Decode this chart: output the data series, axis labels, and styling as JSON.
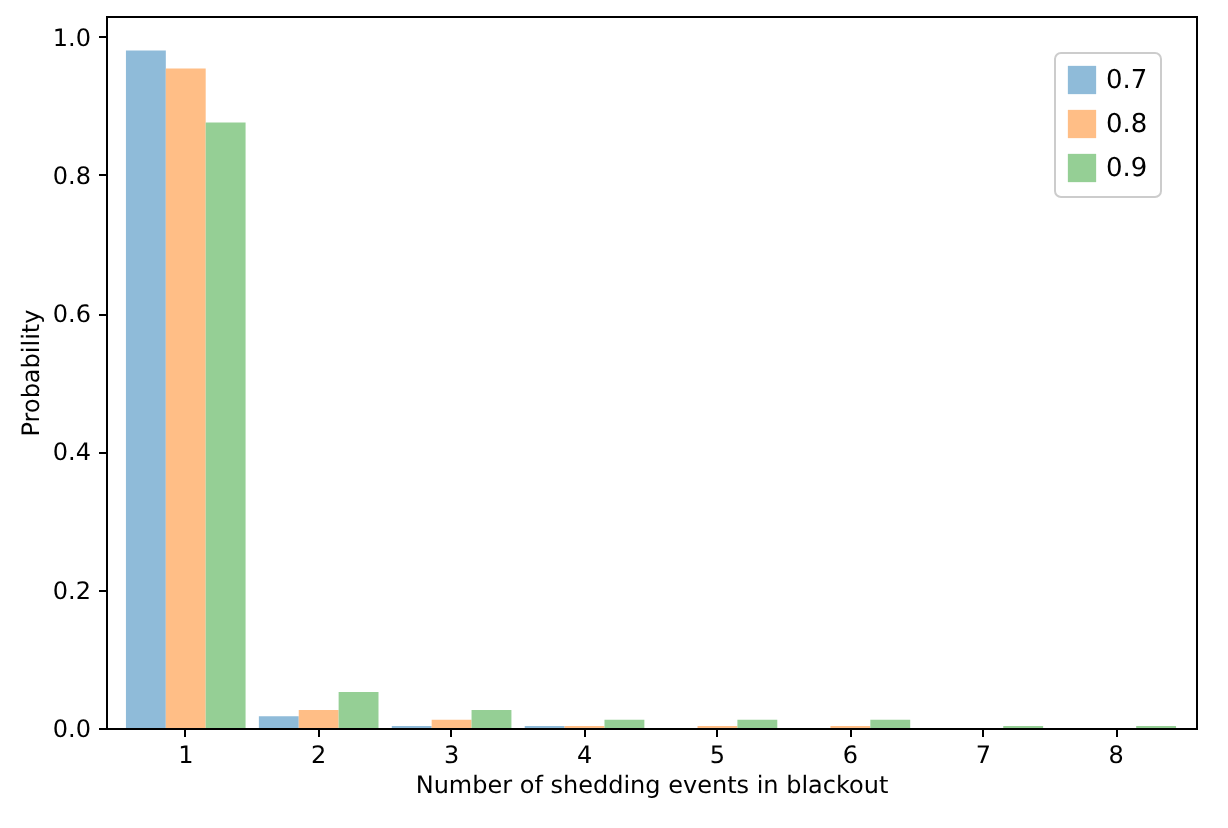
{
  "chart_data": {
    "type": "bar",
    "xlabel": "Number of shedding events in blackout",
    "ylabel": "Probability",
    "categories": [
      "1",
      "2",
      "3",
      "4",
      "5",
      "6",
      "7",
      "8"
    ],
    "series": [
      {
        "name": "0.7",
        "color": "#8fbbd9",
        "values": [
          0.98,
          0.017,
          0.003,
          0.003,
          0,
          0,
          0,
          0
        ]
      },
      {
        "name": "0.8",
        "color": "#ffbe86",
        "values": [
          0.954,
          0.026,
          0.012,
          0.003,
          0.003,
          0.003,
          0,
          0
        ]
      },
      {
        "name": "0.9",
        "color": "#95cf95",
        "values": [
          0.876,
          0.052,
          0.026,
          0.012,
          0.012,
          0.012,
          0.003,
          0.003
        ]
      }
    ],
    "ylim": [
      0,
      1.03
    ],
    "yticks": [
      {
        "value": 0,
        "label": "0.0"
      },
      0.2,
      0.4,
      0.6,
      0.8,
      {
        "value": 1,
        "label": "1.0"
      }
    ],
    "grid": false,
    "legend": "top right"
  }
}
